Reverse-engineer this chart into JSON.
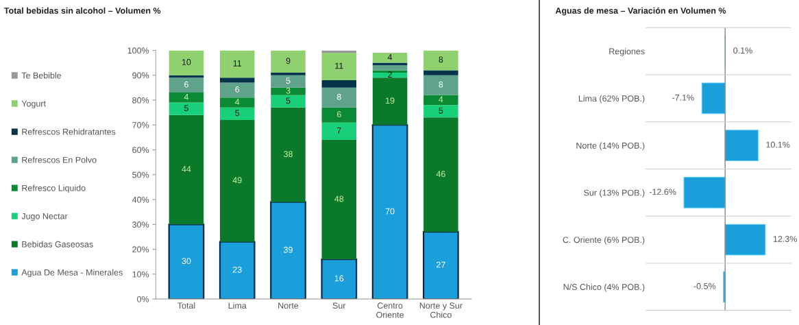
{
  "chart_data": [
    {
      "type": "bar",
      "stacked": true,
      "title": "Total bebidas sin alcohol – Volumen %",
      "categories": [
        "Total",
        "Lima",
        "Norte",
        "Sur",
        "Centro\nOriente",
        "Norte y Sur\nChico"
      ],
      "series": [
        {
          "name": "Agua De Mesa - Minerales",
          "color": "#1a9fdb",
          "values": [
            30,
            23,
            39,
            16,
            70,
            27
          ],
          "value_labels": [
            "30",
            "23",
            "39",
            "16",
            "70",
            "27"
          ]
        },
        {
          "name": "Bebidas Gaseosas",
          "color": "#0a7a2a",
          "values": [
            44,
            49,
            38,
            48,
            19,
            46
          ],
          "value_labels": [
            "44",
            "49",
            "38",
            "48",
            "19",
            "46"
          ]
        },
        {
          "name": "Jugo Nectar",
          "color": "#19d07a",
          "values": [
            5,
            5,
            5,
            7,
            2,
            5
          ],
          "value_labels": [
            "5",
            "5",
            "5",
            "7",
            "2",
            "5"
          ]
        },
        {
          "name": "Refresco Liquido",
          "color": "#0b8a35",
          "values": [
            4,
            4,
            3,
            6,
            1,
            4
          ],
          "value_labels": [
            "4",
            "4",
            "3",
            "6",
            null,
            "4"
          ]
        },
        {
          "name": "Refrescos En Polvo",
          "color": "#5fa38a",
          "values": [
            6,
            6,
            5,
            8,
            2,
            8
          ],
          "value_labels": [
            "6",
            "6",
            "5",
            "8",
            null,
            "8"
          ]
        },
        {
          "name": "Refrescos Rehidratantes",
          "color": "#06344a",
          "values": [
            1,
            2,
            1,
            3,
            1,
            2
          ],
          "value_labels": [
            null,
            null,
            null,
            null,
            null,
            null
          ]
        },
        {
          "name": "Yogurt",
          "color": "#8fd16e",
          "values": [
            10,
            11,
            9,
            11,
            4,
            8
          ],
          "value_labels": [
            "10",
            "11",
            "9",
            "11",
            "4",
            "8"
          ]
        },
        {
          "name": "Te Bebible",
          "color": "#999999",
          "values": [
            0,
            0,
            0,
            1,
            0,
            0
          ]
        }
      ],
      "ylim": [
        0,
        100
      ],
      "yticks": [
        {
          "value": 0,
          "label": "0%"
        },
        {
          "value": 10,
          "label": "10%"
        },
        {
          "value": 20,
          "label": "20%"
        },
        {
          "value": 30,
          "label": "30%"
        },
        {
          "value": 40,
          "label": "40%"
        },
        {
          "value": 50,
          "label": "50%"
        },
        {
          "value": 60,
          "label": "60%"
        },
        {
          "value": 70,
          "label": "70%"
        },
        {
          "value": 80,
          "label": "80%"
        },
        {
          "value": 90,
          "label": "90%"
        },
        {
          "value": 100,
          "label": "100%"
        }
      ],
      "legend": "left",
      "grid": false
    },
    {
      "type": "bar",
      "orientation": "horizontal",
      "title": "Aguas de mesa – Variación en Volumen %",
      "categories": [
        "Regiones",
        "Lima (62% POB.)",
        "Norte (14% POB.)",
        "Sur (13% POB.)",
        "C. Oriente (6% POB.)",
        "N/S Chico (4% POB.)"
      ],
      "values": [
        0.1,
        -7.1,
        10.1,
        -12.6,
        12.3,
        -0.5
      ],
      "color": "#1a9fdb",
      "value_labels": [
        "0.1%",
        "-7.1%",
        "10.1%",
        "-12.6%",
        "12.3%",
        "-0.5%"
      ],
      "tick_labels": "y",
      "grid": "y"
    }
  ]
}
